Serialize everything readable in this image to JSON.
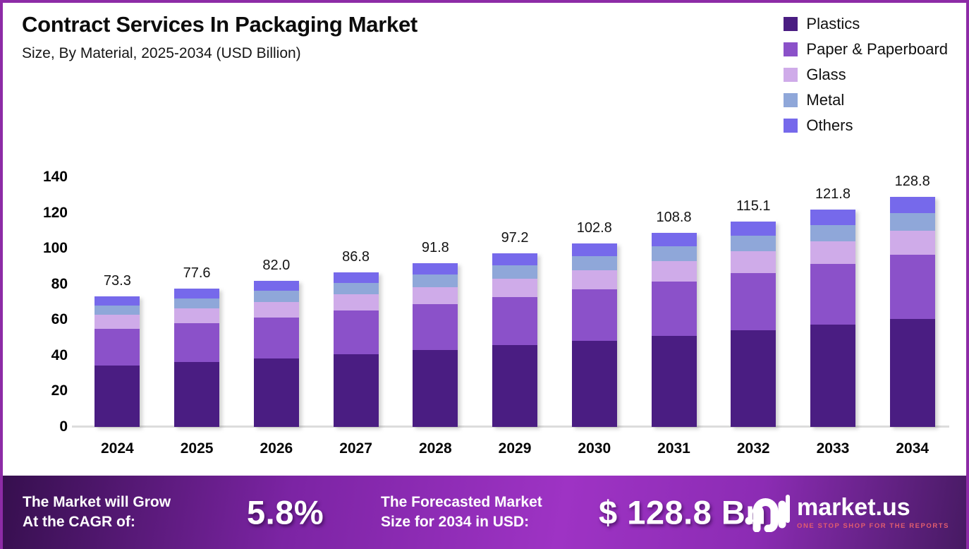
{
  "header": {
    "title": "Contract Services In Packaging Market",
    "subtitle": "Size, By Material, 2025-2034 (USD Billion)"
  },
  "chart_data": {
    "type": "bar",
    "stacked": true,
    "title": "Contract Services In Packaging Market",
    "subtitle": "Size, By Material, 2025-2034 (USD Billion)",
    "categories": [
      "2024",
      "2025",
      "2026",
      "2027",
      "2028",
      "2029",
      "2030",
      "2031",
      "2032",
      "2033",
      "2034"
    ],
    "series": [
      {
        "name": "Plastics",
        "color": "#4a1d82",
        "values": [
          34.5,
          36.5,
          38.5,
          40.8,
          43.1,
          45.7,
          48.3,
          51.1,
          54.1,
          57.2,
          60.5
        ]
      },
      {
        "name": "Paper & Paperboard",
        "color": "#8b51c9",
        "values": [
          20.5,
          21.7,
          23.0,
          24.3,
          25.7,
          27.2,
          28.8,
          30.5,
          32.2,
          34.1,
          36.1
        ]
      },
      {
        "name": "Glass",
        "color": "#cfabe9",
        "values": [
          7.7,
          8.1,
          8.6,
          9.1,
          9.7,
          10.2,
          10.8,
          11.4,
          12.1,
          12.8,
          13.5
        ]
      },
      {
        "name": "Metal",
        "color": "#8fa7d9",
        "values": [
          5.5,
          5.8,
          6.2,
          6.5,
          6.9,
          7.3,
          7.7,
          8.2,
          8.6,
          9.1,
          9.7
        ]
      },
      {
        "name": "Others",
        "color": "#7669eb",
        "values": [
          5.1,
          5.5,
          5.7,
          6.1,
          6.4,
          6.8,
          7.2,
          7.6,
          8.1,
          8.6,
          9.0
        ]
      }
    ],
    "totals": [
      "73.3",
      "77.6",
      "82.0",
      "86.8",
      "91.8",
      "97.2",
      "102.8",
      "108.8",
      "115.1",
      "121.8",
      "128.8"
    ],
    "ylabel": "",
    "xlabel": "",
    "y_ticks": [
      0,
      20,
      40,
      60,
      80,
      100,
      120,
      140
    ],
    "ylim": [
      0,
      140
    ],
    "grid": false,
    "legend_position": "top-right"
  },
  "footer": {
    "cagr_label": "The Market will Grow\nAt the CAGR of:",
    "cagr_value": "5.8%",
    "forecast_label": "The Forecasted Market\nSize for 2034 in USD:",
    "forecast_value": "$ 128.8 Bn",
    "brand": {
      "name": "market.us",
      "tagline": "ONE STOP SHOP FOR THE REPORTS"
    }
  },
  "colors": {
    "frame_border": "#8d2ba6",
    "axis_line": "#dcdcdc",
    "value_label": "#141414",
    "footer_gradient": [
      "#360f4e",
      "#7c24a4",
      "#9e33c4",
      "#8c2cb4",
      "#471a63"
    ],
    "brand_tagline": "#e25d6e"
  }
}
